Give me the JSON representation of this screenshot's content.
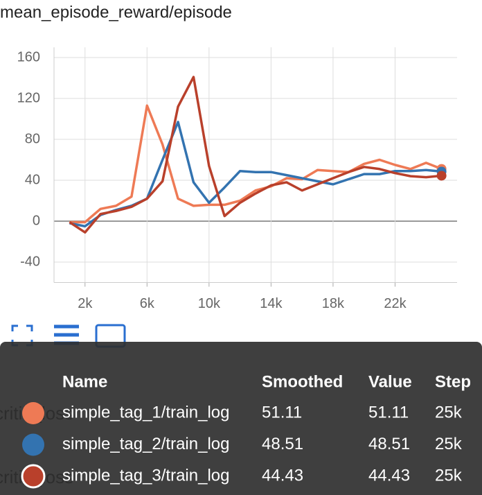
{
  "chart_data": {
    "type": "line",
    "title": "mean_episode_reward/episode",
    "x": [
      1000,
      2000,
      3000,
      4000,
      5000,
      6000,
      7000,
      8000,
      9000,
      10000,
      11000,
      12000,
      13000,
      14000,
      15000,
      16000,
      17000,
      18000,
      19000,
      20000,
      21000,
      22000,
      23000,
      24000,
      25000
    ],
    "series": [
      {
        "name": "simple_tag_1/train_log",
        "color": "#ee7a55",
        "values": [
          -1,
          -1,
          12,
          15,
          24,
          113,
          75,
          22,
          15,
          16,
          16,
          20,
          30,
          34,
          42,
          41,
          50,
          49,
          48,
          56,
          60,
          55,
          51,
          57,
          51.11
        ]
      },
      {
        "name": "simple_tag_2/train_log",
        "color": "#3373b0",
        "values": [
          -2,
          -5,
          6,
          11,
          15,
          22,
          60,
          97,
          38,
          18,
          33,
          49,
          48,
          48,
          45,
          42,
          39,
          36,
          41,
          46,
          46,
          49,
          49,
          50,
          48.51
        ]
      },
      {
        "name": "simple_tag_3/train_log",
        "color": "#b9402b",
        "values": [
          -1,
          -11,
          7,
          10,
          14,
          22,
          39,
          112,
          141,
          54,
          5,
          18,
          27,
          35,
          38,
          30,
          36,
          42,
          48,
          53,
          51,
          47,
          44,
          43,
          44.43
        ]
      }
    ],
    "xlim": [
      0,
      26000
    ],
    "xticks": [
      {
        "value": 2000,
        "label": "2k"
      },
      {
        "value": 6000,
        "label": "6k"
      },
      {
        "value": 10000,
        "label": "10k"
      },
      {
        "value": 14000,
        "label": "14k"
      },
      {
        "value": 18000,
        "label": "18k"
      },
      {
        "value": 22000,
        "label": "22k"
      }
    ],
    "ylim": [
      -60,
      170
    ],
    "yticks": [
      -40,
      0,
      40,
      80,
      120,
      160
    ],
    "grid": true
  },
  "background_labels": [
    "critic_loss",
    "critic_loss"
  ],
  "tooltip": {
    "columns": [
      "Name",
      "Smoothed",
      "Value",
      "Step"
    ],
    "rows": [
      [
        "simple_tag_1/train_log",
        "51.11",
        "51.11",
        "25k"
      ],
      [
        "simple_tag_2/train_log",
        "48.51",
        "48.51",
        "25k"
      ],
      [
        "simple_tag_3/train_log",
        "44.43",
        "44.43",
        "25k"
      ]
    ]
  }
}
